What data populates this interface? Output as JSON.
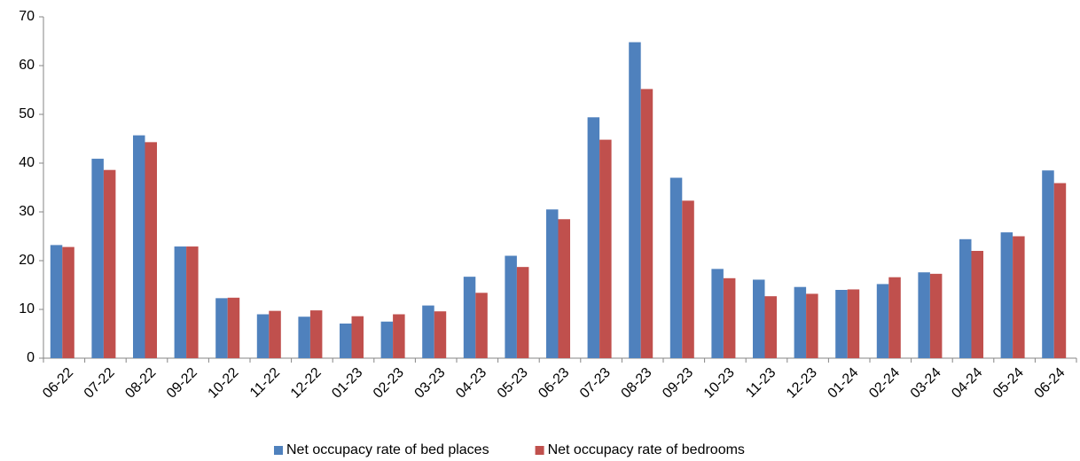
{
  "chart_data": {
    "type": "bar",
    "categories": [
      "06-22",
      "07-22",
      "08-22",
      "09-22",
      "10-22",
      "11-22",
      "12-22",
      "01-23",
      "02-23",
      "03-23",
      "04-23",
      "05-23",
      "06-23",
      "07-23",
      "08-23",
      "09-23",
      "10-23",
      "11-23",
      "12-23",
      "01-24",
      "02-24",
      "03-24",
      "04-24",
      "05-24",
      "06-24"
    ],
    "series": [
      {
        "name": "Net occupacy rate of bed places",
        "color": "#4f81bd",
        "values": [
          23.2,
          40.9,
          45.7,
          22.9,
          12.3,
          9.0,
          8.5,
          7.1,
          7.5,
          10.8,
          16.7,
          21.0,
          30.5,
          49.4,
          64.8,
          37.0,
          18.3,
          16.1,
          14.6,
          14.0,
          15.2,
          17.6,
          24.4,
          25.8,
          38.5
        ]
      },
      {
        "name": "Net occupacy rate of bedrooms",
        "color": "#c0504d",
        "values": [
          22.8,
          38.6,
          44.3,
          22.9,
          12.4,
          9.7,
          9.8,
          8.6,
          9.0,
          9.6,
          13.4,
          18.7,
          28.5,
          44.8,
          55.2,
          32.3,
          16.4,
          12.7,
          13.2,
          14.1,
          16.6,
          17.3,
          22.0,
          25.0,
          35.9
        ]
      }
    ],
    "ylim": [
      0,
      70
    ],
    "yticks": [
      0,
      10,
      20,
      30,
      40,
      50,
      60,
      70
    ],
    "grid": false,
    "legend": "bottom"
  }
}
